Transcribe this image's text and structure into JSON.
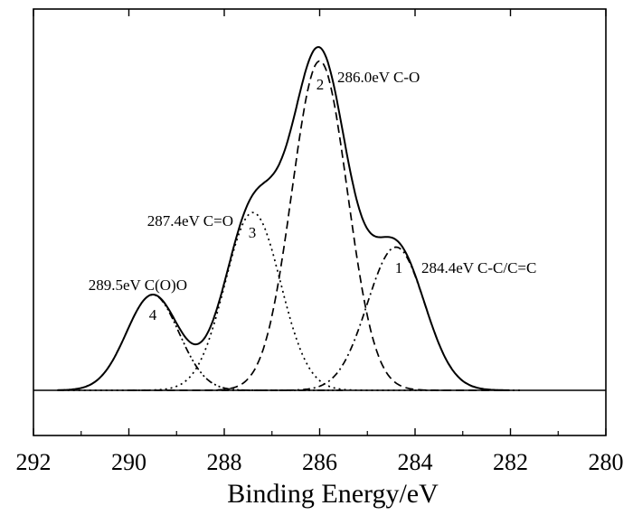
{
  "chart_data": {
    "type": "line",
    "title": "",
    "xlabel": "Binding Energy/eV",
    "ylabel": "",
    "xlim": [
      292,
      280
    ],
    "x_reversed": true,
    "x_ticks": [
      292,
      290,
      288,
      286,
      284,
      282,
      280
    ],
    "grid": false,
    "legend": "none",
    "peaks": [
      {
        "id": "1",
        "center": 284.4,
        "height": 0.435,
        "sigma": 0.6,
        "style": "dash-dot",
        "annotation": "284.4eV  C-C/C=C"
      },
      {
        "id": "2",
        "center": 286.0,
        "height": 1.0,
        "sigma": 0.58,
        "style": "dashed",
        "annotation": "286.0eV  C-O"
      },
      {
        "id": "3",
        "center": 287.4,
        "height": 0.54,
        "sigma": 0.58,
        "style": "dotted",
        "annotation": "287.4eV  C=O"
      },
      {
        "id": "4",
        "center": 289.5,
        "height": 0.29,
        "sigma": 0.55,
        "style": "dash-dot-dot",
        "annotation": "289.5eV  C(O)O"
      }
    ],
    "envelope": {
      "style": "solid",
      "description_hidden": true
    },
    "baseline": 0
  }
}
